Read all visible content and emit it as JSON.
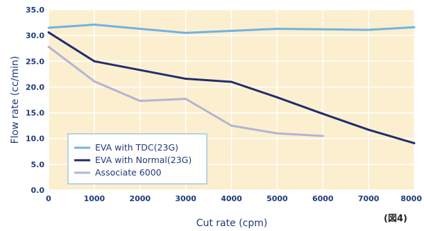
{
  "chart_data": {
    "type": "line",
    "title": "",
    "xlabel": "Cut rate (cpm)",
    "ylabel": "Flow rate (cc/min)",
    "xlim": [
      0,
      8000
    ],
    "ylim": [
      0,
      35
    ],
    "xticks": [
      0,
      1000,
      2000,
      3000,
      4000,
      5000,
      6000,
      7000,
      8000
    ],
    "yticks": [
      0,
      5,
      10,
      15,
      20,
      25,
      30,
      35
    ],
    "xtick_labels": [
      "0",
      "1000",
      "2000",
      "3000",
      "4000",
      "5000",
      "6000",
      "7000",
      "8000"
    ],
    "ytick_labels": [
      "0.0",
      "5.0",
      "10.0",
      "15.0",
      "20.0",
      "25.0",
      "30.0",
      "35.0"
    ],
    "grid": true,
    "legend_position": "bottom-left",
    "series": [
      {
        "name": "EVA with TDC(23G)",
        "color": "#6fb3e0",
        "x": [
          0,
          1000,
          2000,
          3000,
          4000,
          5000,
          6000,
          7000,
          8000
        ],
        "y": [
          31.5,
          32.1,
          31.3,
          30.5,
          30.9,
          31.3,
          31.2,
          31.1,
          31.6
        ]
      },
      {
        "name": "EVA with Normal(23G)",
        "color": "#1f2d6e",
        "x": [
          0,
          1000,
          2000,
          3000,
          4000,
          5000,
          6000,
          7000,
          8000
        ],
        "y": [
          30.6,
          25.0,
          23.3,
          21.6,
          21.0,
          18.0,
          14.8,
          11.7,
          9.1
        ]
      },
      {
        "name": "Associate 6000",
        "color": "#b3b3d3",
        "x": [
          0,
          1000,
          2000,
          3000,
          4000,
          5000,
          6000
        ],
        "y": [
          27.8,
          21.1,
          17.3,
          17.7,
          12.5,
          11.0,
          10.5
        ]
      }
    ],
    "annotation": "(図4)",
    "colors": {
      "plot_background": "#fbefcf",
      "grid": "#ffffff",
      "axis_text": "#1f3a78"
    }
  }
}
